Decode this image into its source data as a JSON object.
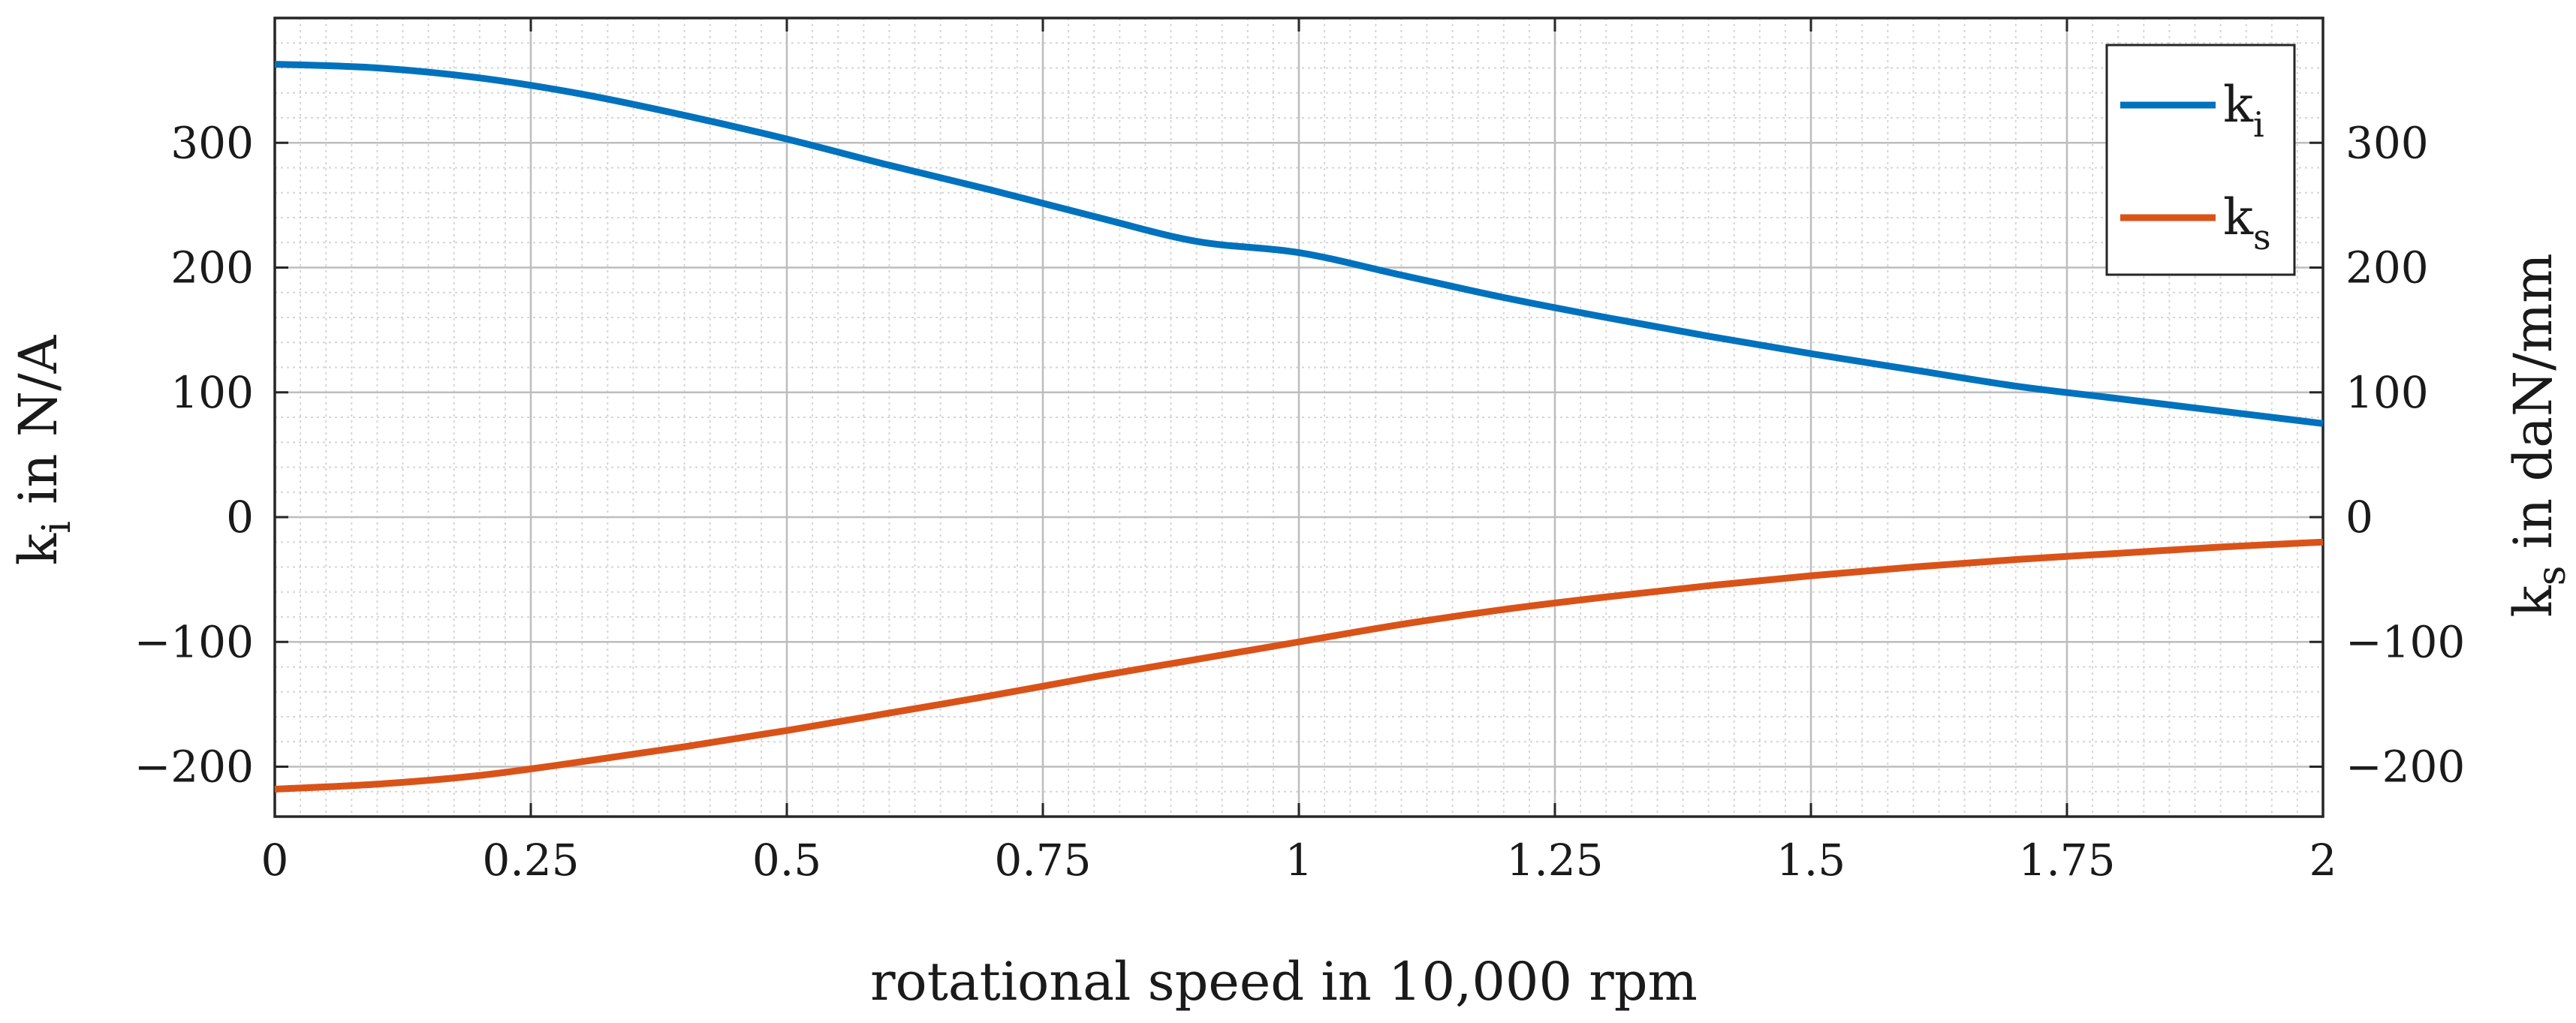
{
  "chart_data": {
    "type": "line",
    "x": [
      0,
      0.1,
      0.2,
      0.3,
      0.4,
      0.5,
      0.6,
      0.7,
      0.8,
      0.9,
      1.0,
      1.1,
      1.2,
      1.3,
      1.4,
      1.5,
      1.6,
      1.7,
      1.8,
      1.9,
      2.0
    ],
    "series": [
      {
        "name": "k_i",
        "legend_main": "k",
        "legend_sub": "i",
        "color": "#0072BD",
        "axis": "left",
        "values": [
          363,
          360,
          352,
          339,
          322,
          303,
          282,
          262,
          241,
          221,
          212,
          194,
          176,
          160,
          145,
          131,
          118,
          105,
          95,
          85,
          75
        ]
      },
      {
        "name": "k_s",
        "legend_main": "k",
        "legend_sub": "s",
        "color": "#D95319",
        "axis": "right",
        "values": [
          -218,
          -214,
          -207,
          -196,
          -184,
          -171,
          -157,
          -143,
          -128,
          -114,
          -100,
          -86,
          -74,
          -64,
          -55,
          -47,
          -40,
          -34,
          -29,
          -24,
          -20
        ]
      }
    ],
    "xlabel": "rotational speed in 10,000 rpm",
    "ylabel_left": {
      "main": "k",
      "sub": "i",
      "rest": " in N/A"
    },
    "ylabel_right": {
      "main": "k",
      "sub": "s",
      "rest": " in daN/mm"
    },
    "xlim": [
      0,
      2
    ],
    "ylim": [
      -240,
      400
    ],
    "xticks": [
      0,
      0.25,
      0.5,
      0.75,
      1,
      1.25,
      1.5,
      1.75,
      2
    ],
    "xtick_labels": [
      "0",
      "0.25",
      "0.5",
      "0.75",
      "1",
      "1.25",
      "1.5",
      "1.75",
      "2"
    ],
    "yticks": [
      -200,
      -100,
      0,
      100,
      200,
      300
    ],
    "ytick_labels": [
      "−200",
      "−100",
      "0",
      "100",
      "200",
      "300"
    ],
    "grid": true,
    "legend_position": "top-right"
  }
}
